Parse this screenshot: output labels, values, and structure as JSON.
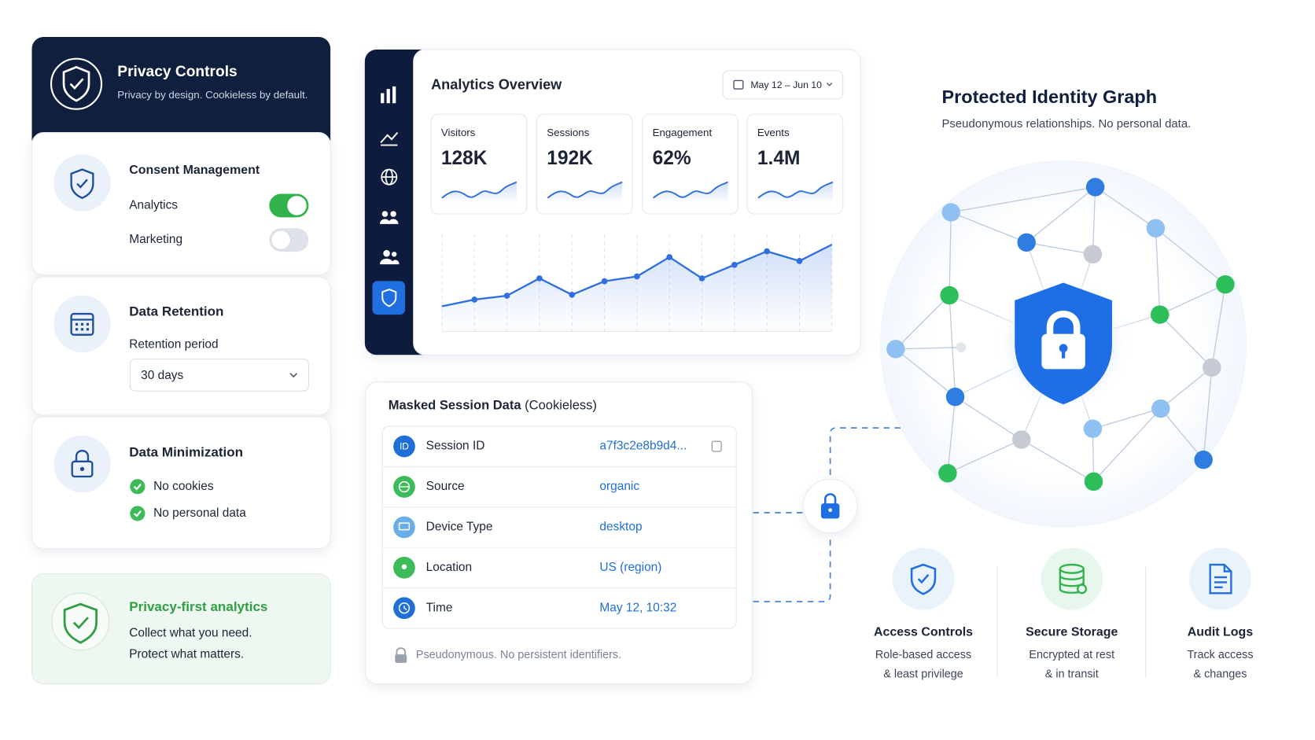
{
  "privacy_controls": {
    "title": "Privacy Controls",
    "subtitle": "Privacy by design. Cookieless by default."
  },
  "consent": {
    "title": "Consent Management",
    "items": [
      {
        "label": "Analytics",
        "enabled": true
      },
      {
        "label": "Marketing",
        "enabled": false
      }
    ]
  },
  "retention": {
    "title": "Data Retention",
    "label": "Retention period",
    "value": "30 days"
  },
  "minimization": {
    "title": "Data Minimization",
    "items": [
      "No cookies",
      "No personal data"
    ]
  },
  "banner": {
    "title": "Privacy-first analytics",
    "lines": [
      "Collect what you need.",
      "Protect what matters."
    ]
  },
  "analytics": {
    "title": "Analytics Overview",
    "date_range": "May 12 – Jun 10",
    "kpis": [
      {
        "label": "Visitors",
        "value": "128K"
      },
      {
        "label": "Sessions",
        "value": "192K"
      },
      {
        "label": "Engagement",
        "value": "62%"
      },
      {
        "label": "Events",
        "value": "1.4M"
      }
    ],
    "chart": {
      "type": "line",
      "values": [
        26,
        33,
        37,
        55,
        38,
        52,
        57,
        77,
        55,
        69,
        83,
        73,
        90
      ],
      "ylim": [
        0,
        100
      ],
      "color": "#2f6fe0"
    }
  },
  "session": {
    "title": "Masked Session Data",
    "title_note": "(Cookieless)",
    "rows": [
      {
        "badge": "ID",
        "label": "Session ID",
        "value": "a7f3c2e8b9d4..."
      },
      {
        "label": "Source",
        "value": "organic"
      },
      {
        "label": "Device Type",
        "value": "desktop"
      },
      {
        "label": "Location",
        "value": "US (region)"
      },
      {
        "label": "Time",
        "value": "May 12, 10:32"
      }
    ],
    "footer": "Pseudonymous. No persistent identifiers."
  },
  "graph": {
    "title": "Protected Identity Graph",
    "subtitle": "Pseudonymous relationships. No personal data."
  },
  "features": [
    {
      "title": "Access Controls",
      "lines": [
        "Role-based access",
        "& least privilege"
      ]
    },
    {
      "title": "Secure Storage",
      "lines": [
        "Encrypted at rest",
        "& in transit"
      ]
    },
    {
      "title": "Audit Logs",
      "lines": [
        "Track access",
        "& changes"
      ]
    }
  ]
}
